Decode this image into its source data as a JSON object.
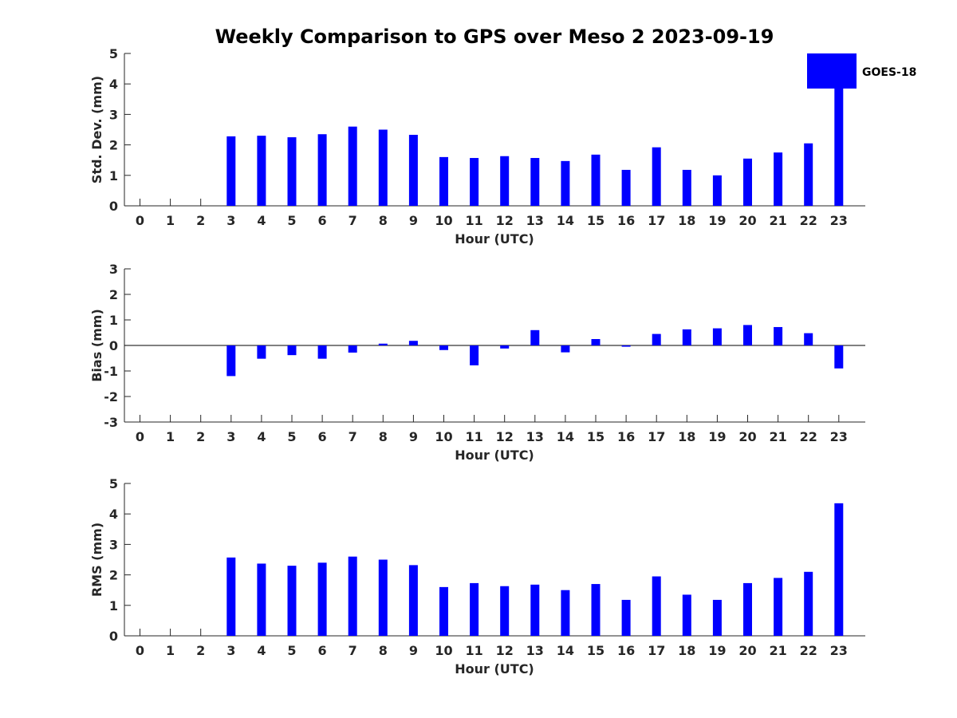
{
  "chart_data": {
    "type": "bar",
    "title": "Weekly Comparison to GPS over Meso 2 2023-09-19",
    "legend": {
      "label": "GOES-18",
      "color": "#0000FF",
      "placement": "top-right"
    },
    "bar_color": "#0000FF",
    "categories": [
      "0",
      "1",
      "2",
      "3",
      "4",
      "5",
      "6",
      "7",
      "8",
      "9",
      "10",
      "11",
      "12",
      "13",
      "14",
      "15",
      "16",
      "17",
      "18",
      "19",
      "20",
      "21",
      "22",
      "23"
    ],
    "panels": [
      {
        "id": "std",
        "ylabel": "Std. Dev. (mm)",
        "xlabel": "Hour (UTC)",
        "ylim": [
          0,
          5
        ],
        "yticks": [
          "0",
          "1",
          "2",
          "3",
          "4",
          "5"
        ],
        "values": [
          null,
          null,
          null,
          2.28,
          2.3,
          2.25,
          2.35,
          2.6,
          2.5,
          2.33,
          1.6,
          1.57,
          1.63,
          1.57,
          1.47,
          1.68,
          1.18,
          1.92,
          1.18,
          1.0,
          1.55,
          1.75,
          2.05,
          3.85
        ]
      },
      {
        "id": "bias",
        "ylabel": "Bias (mm)",
        "xlabel": "Hour (UTC)",
        "ylim": [
          -3,
          3
        ],
        "yticks": [
          "-3",
          "-2",
          "-1",
          "0",
          "1",
          "2",
          "3"
        ],
        "zero_line": true,
        "values": [
          null,
          null,
          null,
          -1.2,
          -0.52,
          -0.38,
          -0.52,
          -0.28,
          0.07,
          0.18,
          -0.18,
          -0.78,
          -0.12,
          0.6,
          -0.27,
          0.25,
          -0.05,
          0.45,
          0.63,
          0.67,
          0.8,
          0.72,
          0.48,
          -0.9
        ]
      },
      {
        "id": "rms",
        "ylabel": "RMS (mm)",
        "xlabel": "Hour (UTC)",
        "ylim": [
          0,
          5
        ],
        "yticks": [
          "0",
          "1",
          "2",
          "3",
          "4",
          "5"
        ],
        "values": [
          null,
          null,
          null,
          2.57,
          2.37,
          2.3,
          2.4,
          2.6,
          2.5,
          2.32,
          1.6,
          1.73,
          1.63,
          1.68,
          1.5,
          1.7,
          1.18,
          1.95,
          1.35,
          1.18,
          1.73,
          1.9,
          2.1,
          4.35
        ]
      }
    ]
  }
}
